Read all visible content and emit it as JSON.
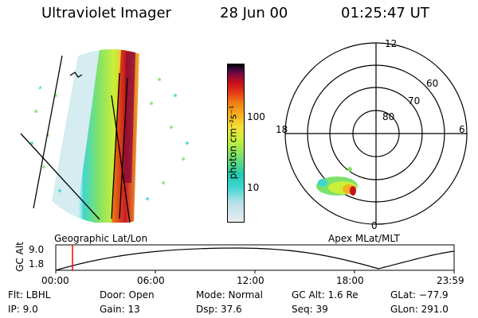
{
  "header": {
    "instrument": "Ultraviolet Imager",
    "date": "28 Jun 00",
    "time": "01:25:47 UT"
  },
  "left_panel": {
    "label": "Geographic Lat/Lon"
  },
  "colorbar": {
    "unit_label": "photon cm⁻²s⁻¹",
    "ticks": [
      "100",
      "10"
    ],
    "colors": [
      "#e8ecef",
      "#b9e0e8",
      "#3fd6d0",
      "#22c9b0",
      "#7ee26a",
      "#c9ef3a",
      "#f2e23a",
      "#f6b21f",
      "#f07a12",
      "#e63a1a",
      "#c8101a",
      "#8a0a3a",
      "#3a0838",
      "#000000"
    ]
  },
  "right_panel": {
    "label": "Apex MLat/MLT",
    "mlt_labels": [
      "12",
      "18",
      "6",
      "0"
    ],
    "mlat_labels": [
      "60",
      "70",
      "80"
    ]
  },
  "altitude_plot": {
    "ylabel": "GC Alt",
    "yticks": [
      "9.0",
      "1.8"
    ],
    "xticks": [
      "00:00",
      "06:00",
      "12:00",
      "18:00",
      "23:59"
    ],
    "marker_color": "#ff0000"
  },
  "footer": {
    "flt": "Flt: LBHL",
    "ip": "IP:  9.0",
    "door": "Door: Open",
    "gain": "Gain: 13",
    "mode": "Mode: Normal",
    "dsp": "Dsp:   37.6",
    "gc_alt": "GC Alt: 1.6 Re",
    "seq": "Seq: 39",
    "glat": "GLat: −77.9",
    "glon": "GLon: 291.0"
  }
}
